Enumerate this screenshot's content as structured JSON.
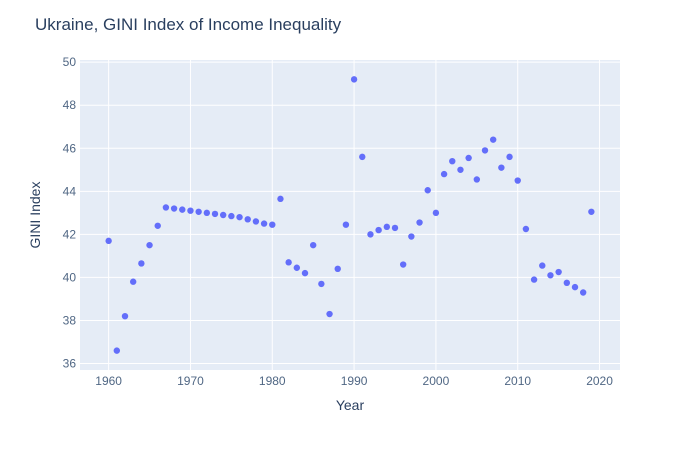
{
  "chart_data": {
    "type": "scatter",
    "title": "Ukraine, GINI Index of Income Inequality",
    "xlabel": "Year",
    "ylabel": "GINI Index",
    "xlim": [
      1956.5,
      2022.5
    ],
    "ylim": [
      35.7,
      50.1
    ],
    "x_ticks": [
      1960,
      1970,
      1980,
      1990,
      2000,
      2010,
      2020
    ],
    "y_ticks": [
      36,
      38,
      40,
      42,
      44,
      46,
      48,
      50
    ],
    "grid": true,
    "legend": "none",
    "colors": {
      "marker": "#636efa",
      "plot_bg": "#e5ecf6",
      "grid": "#ffffff",
      "text": "#2a3f5f",
      "tick_text": "#506784"
    },
    "series": [
      {
        "x": [
          1960,
          1961,
          1962,
          1963,
          1964,
          1965,
          1966,
          1967,
          1968,
          1969,
          1970,
          1971,
          1972,
          1973,
          1974,
          1975,
          1976,
          1977,
          1978,
          1979,
          1980,
          1981,
          1982,
          1983,
          1984,
          1985,
          1986,
          1987,
          1988,
          1989,
          1990,
          1991,
          1992,
          1993,
          1994,
          1995,
          1996,
          1997,
          1998,
          1999,
          2000,
          2001,
          2002,
          2003,
          2004,
          2005,
          2006,
          2007,
          2008,
          2009,
          2010,
          2011,
          2012,
          2013,
          2014,
          2015,
          2016,
          2017,
          2018,
          2019
        ],
        "y": [
          41.7,
          36.6,
          38.2,
          39.8,
          40.65,
          41.5,
          42.4,
          43.25,
          43.2,
          43.15,
          43.1,
          43.05,
          43.0,
          42.95,
          42.9,
          42.85,
          42.8,
          42.7,
          42.6,
          42.5,
          42.45,
          43.65,
          40.7,
          40.45,
          40.2,
          41.5,
          39.7,
          38.3,
          40.4,
          42.45,
          49.2,
          45.6,
          42.0,
          42.2,
          42.35,
          42.3,
          40.6,
          41.9,
          42.55,
          44.05,
          43.0,
          44.8,
          45.4,
          45.0,
          45.55,
          44.55,
          45.9,
          46.4,
          45.1,
          45.6,
          44.5,
          42.25,
          39.9,
          40.55,
          40.1,
          40.25,
          39.75,
          39.55,
          39.3,
          43.05
        ]
      }
    ]
  }
}
